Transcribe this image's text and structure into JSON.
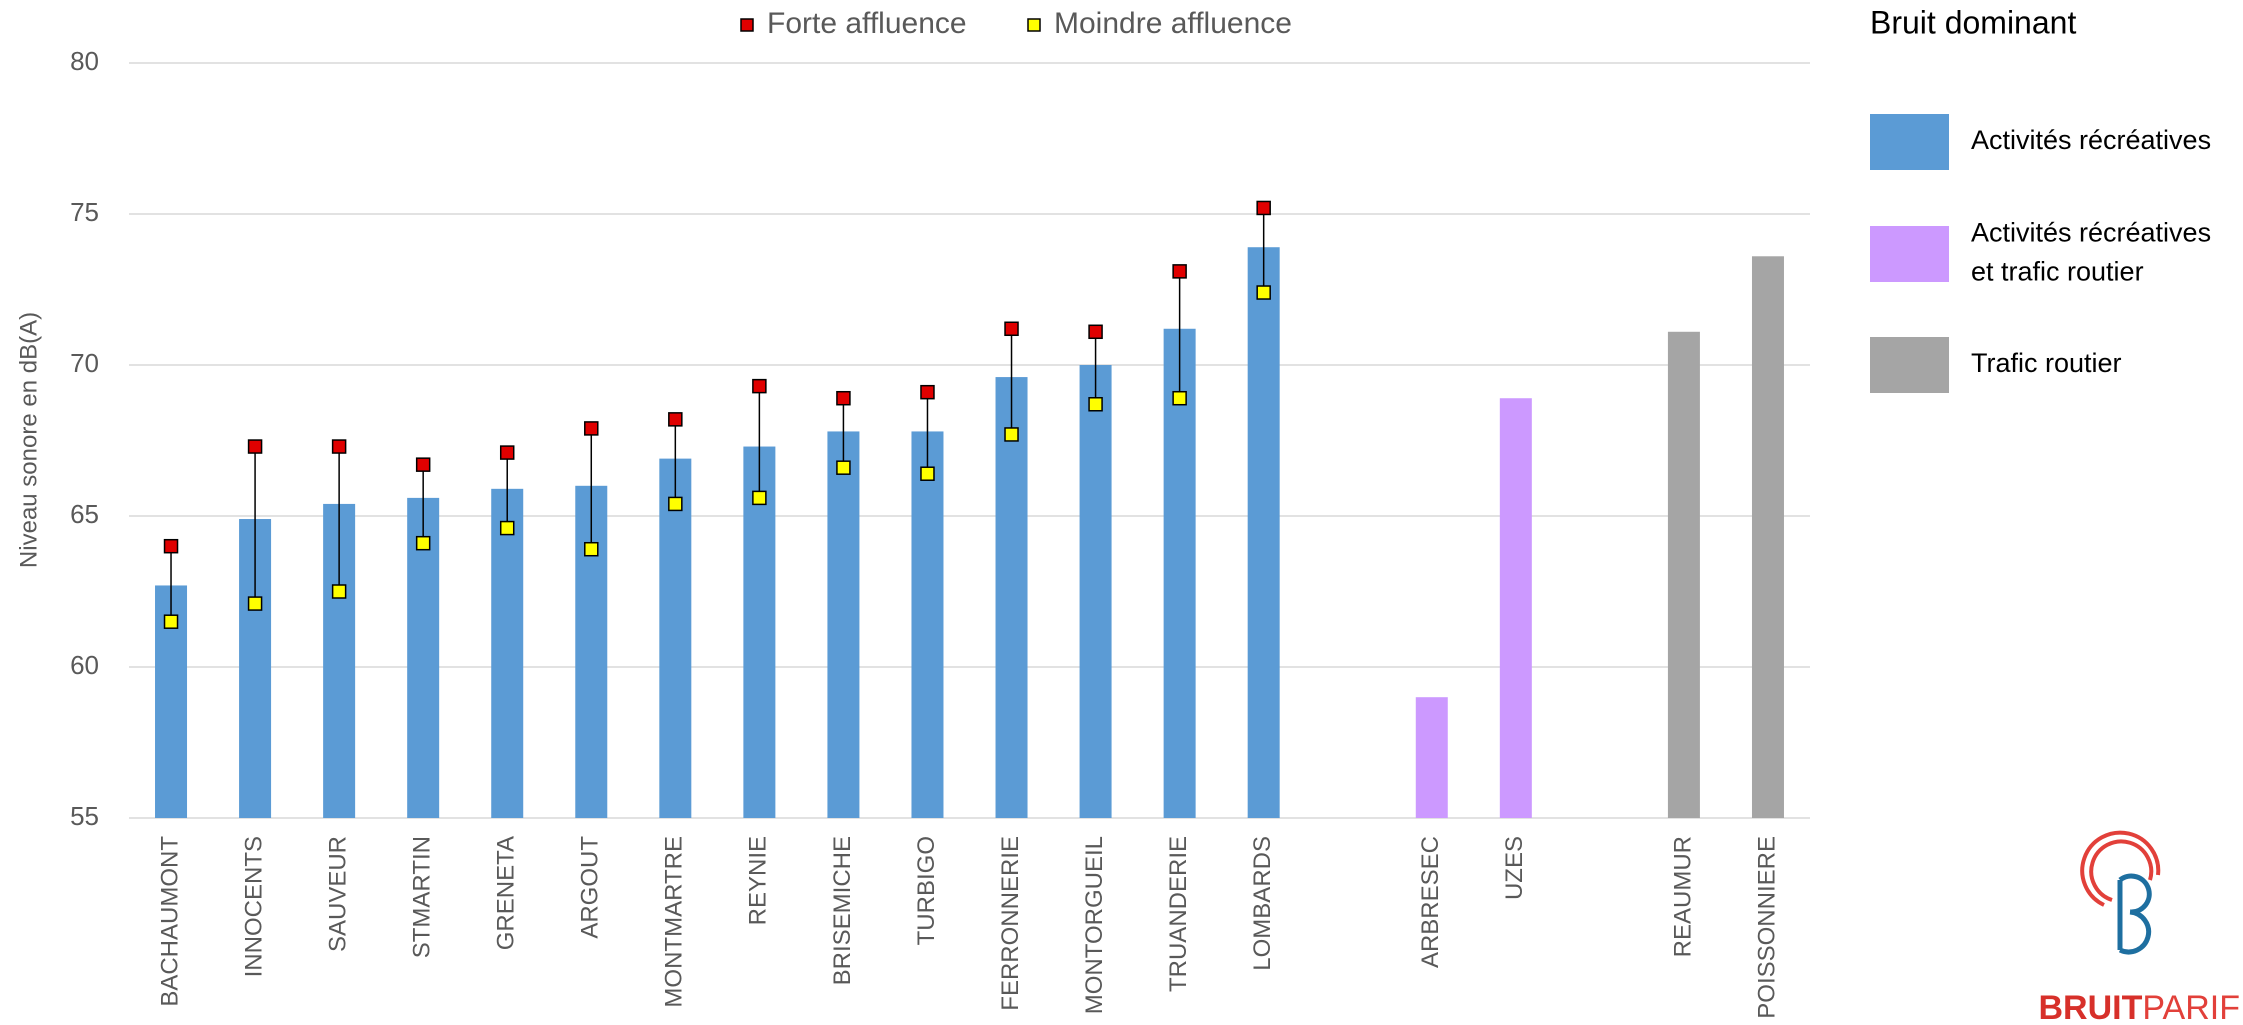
{
  "chart_data": {
    "type": "bar",
    "y_label": "Niveau sonore en dB(A)",
    "categories": [
      "BACHAUMONT",
      "INNOCENTS",
      "SAUVEUR",
      "STMARTIN",
      "GRENETA",
      "ARGOUT",
      "MONTMARTRE",
      "REYNIE",
      "BRISEMICHE",
      "TURBIGO",
      "FERRONNERIE",
      "MONTORGUEIL",
      "TRUANDERIE",
      "LOMBARDS",
      null,
      "ARBRESEC",
      "UZES",
      null,
      "REAUMUR",
      "POISSONNIERE"
    ],
    "values": [
      62.7,
      64.9,
      65.4,
      65.6,
      65.9,
      66.0,
      66.9,
      67.3,
      67.8,
      67.8,
      69.6,
      70.0,
      71.2,
      73.9,
      null,
      59.0,
      68.9,
      null,
      71.1,
      73.6
    ],
    "bar_colors": [
      "#5b9bd5",
      "#5b9bd5",
      "#5b9bd5",
      "#5b9bd5",
      "#5b9bd5",
      "#5b9bd5",
      "#5b9bd5",
      "#5b9bd5",
      "#5b9bd5",
      "#5b9bd5",
      "#5b9bd5",
      "#5b9bd5",
      "#5b9bd5",
      "#5b9bd5",
      null,
      "#cc99ff",
      "#cc99ff",
      null,
      "#a5a5a5",
      "#a5a5a5"
    ],
    "series": [
      {
        "name": "Forte affluence",
        "color": "#e00000",
        "values": [
          64.0,
          67.3,
          67.3,
          66.7,
          67.1,
          67.9,
          68.2,
          69.3,
          68.9,
          69.1,
          71.2,
          71.1,
          73.1,
          75.2,
          null,
          null,
          null,
          null,
          null,
          null
        ]
      },
      {
        "name": "Moindre affluence",
        "color": "#ffff00",
        "values": [
          61.5,
          62.1,
          62.5,
          64.1,
          64.6,
          63.9,
          65.4,
          65.6,
          66.6,
          66.4,
          67.7,
          68.7,
          68.9,
          72.4,
          null,
          null,
          null,
          null,
          null,
          null
        ]
      }
    ],
    "ylim": [
      55,
      80
    ],
    "yticks": [
      55,
      60,
      65,
      70,
      75,
      80
    ],
    "grid": true,
    "legend_title": "Bruit dominant",
    "legend_groups": [
      {
        "label": [
          "Activités récréatives"
        ],
        "color": "#5b9bd5"
      },
      {
        "label": [
          "Activités récréatives",
          "et trafic routier"
        ],
        "color": "#cc99ff"
      },
      {
        "label": [
          "Trafic routier"
        ],
        "color": "#a5a5a5"
      }
    ]
  },
  "logo": {
    "bold": "BRUIT",
    "light": "PARIF"
  }
}
